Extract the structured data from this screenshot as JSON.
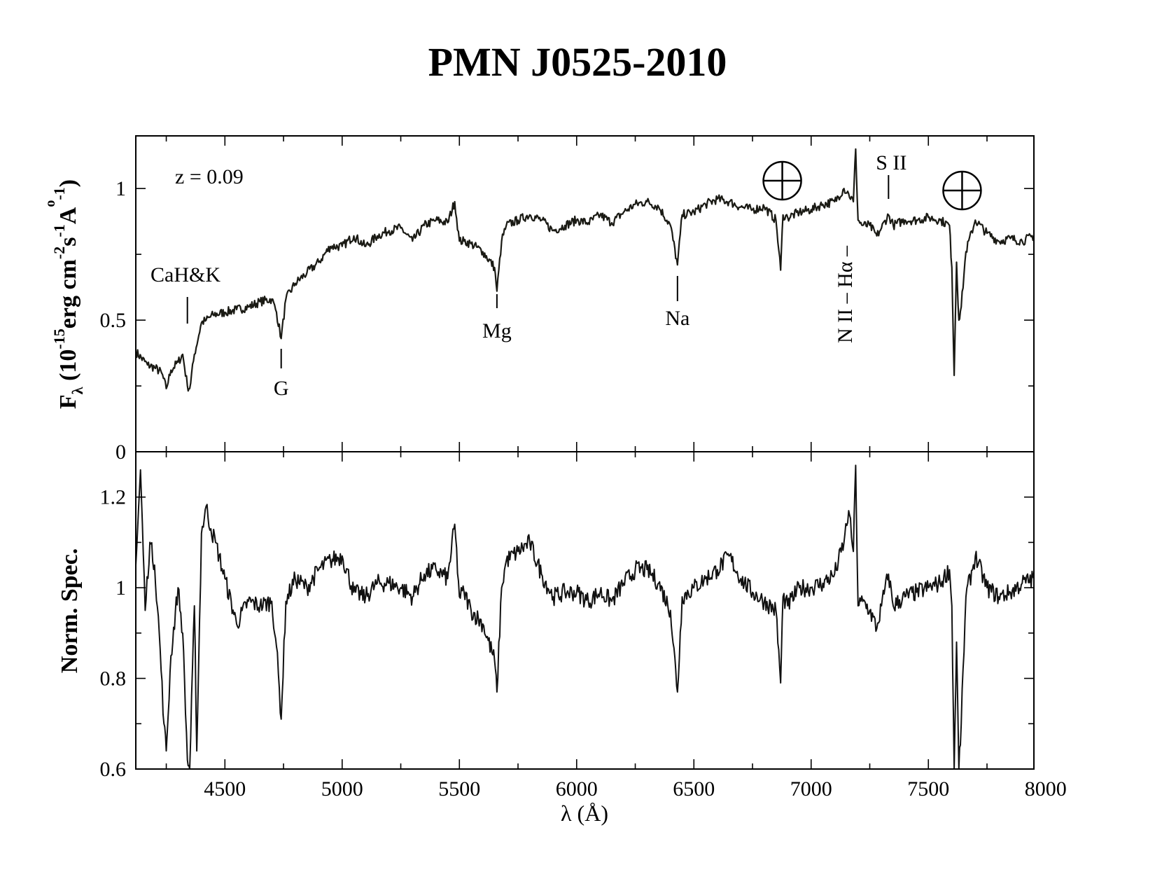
{
  "title": "PMN J0525-2010",
  "x_axis": {
    "label": "λ (Å)",
    "lambda": "λ",
    "unit": "Å",
    "range": [
      4120,
      7950
    ],
    "major_ticks": [
      4500,
      5000,
      5500,
      6000,
      6500,
      7000,
      7500,
      8000
    ],
    "minor_step": 250
  },
  "top_panel": {
    "ylabel": {
      "symbol": "F",
      "sub": "λ",
      "open": "(10",
      "exp": "-15",
      "erg": "erg cm",
      "exp_cm": "-2",
      "s": "s",
      "exp_s": "-1",
      "A": "A",
      "ring": "o",
      "exp_A": "-1",
      "close": ")"
    },
    "yrange": [
      0,
      1.2
    ],
    "major_ticks": [
      0,
      0.5,
      1
    ],
    "tick_labels": [
      "0",
      "0.5",
      "1"
    ],
    "minor_step": 0.25,
    "redshift_note": "z = 0.09",
    "line_labels": [
      {
        "text": "CaH&K",
        "lambda": 4340
      },
      {
        "text": "G",
        "lambda": 4740
      },
      {
        "text": "Mg",
        "lambda": 5660
      },
      {
        "text": "Na",
        "lambda": 6430
      },
      {
        "text": "N II",
        "lambda": 7150
      },
      {
        "text": "Hα",
        "lambda": 7160
      },
      {
        "text": "S II",
        "lambda": 7330
      }
    ],
    "telluric_markers": [
      {
        "name": "earth-symbol",
        "lambda": 6880
      },
      {
        "name": "earth-symbol",
        "lambda": 7620
      }
    ]
  },
  "bottom_panel": {
    "ylabel": "Norm. Spec.",
    "yrange": [
      0.6,
      1.3
    ],
    "major_ticks": [
      0.6,
      0.8,
      1,
      1.2
    ],
    "tick_labels": [
      "0.6",
      "0.8",
      "1",
      "1.2"
    ],
    "minor_step": 0.1
  },
  "chart_data": [
    {
      "type": "line",
      "panel": "top",
      "ylabel": "F_λ (10^-15 erg cm^-2 s^-1 Å^-1)",
      "xlim": [
        4120,
        7950
      ],
      "ylim": [
        0,
        1.2
      ],
      "series": [
        {
          "x": [
            4120,
            4170,
            4200,
            4230,
            4250,
            4270,
            4300,
            4320,
            4340,
            4350,
            4370,
            4400,
            4420,
            4450,
            4500,
            4550,
            4600,
            4650,
            4700,
            4720,
            4740,
            4760,
            4800,
            4850,
            4900,
            4950,
            5000,
            5050,
            5100,
            5150,
            5200,
            5250,
            5300,
            5350,
            5400,
            5450,
            5480,
            5500,
            5520,
            5550,
            5600,
            5650,
            5660,
            5680,
            5700,
            5750,
            5800,
            5850,
            5900,
            5950,
            6000,
            6050,
            6100,
            6150,
            6200,
            6250,
            6300,
            6350,
            6400,
            6430,
            6450,
            6500,
            6550,
            6600,
            6650,
            6700,
            6750,
            6800,
            6850,
            6870,
            6880,
            6900,
            6950,
            7000,
            7050,
            7100,
            7140,
            7160,
            7180,
            7190,
            7200,
            7220,
            7250,
            7280,
            7300,
            7330,
            7350,
            7400,
            7450,
            7500,
            7550,
            7590,
            7600,
            7610,
            7620,
            7630,
            7640,
            7660,
            7700,
            7750,
            7800,
            7850,
            7900,
            7950
          ],
          "y": [
            0.38,
            0.33,
            0.32,
            0.3,
            0.24,
            0.31,
            0.34,
            0.37,
            0.25,
            0.24,
            0.37,
            0.49,
            0.5,
            0.52,
            0.53,
            0.54,
            0.55,
            0.57,
            0.58,
            0.53,
            0.43,
            0.58,
            0.64,
            0.68,
            0.72,
            0.78,
            0.78,
            0.82,
            0.78,
            0.82,
            0.84,
            0.85,
            0.8,
            0.86,
            0.88,
            0.87,
            0.95,
            0.8,
            0.8,
            0.79,
            0.76,
            0.7,
            0.61,
            0.8,
            0.86,
            0.88,
            0.9,
            0.88,
            0.84,
            0.86,
            0.88,
            0.87,
            0.9,
            0.87,
            0.91,
            0.94,
            0.95,
            0.93,
            0.86,
            0.71,
            0.9,
            0.91,
            0.94,
            0.96,
            0.95,
            0.93,
            0.92,
            0.93,
            0.88,
            0.69,
            0.9,
            0.89,
            0.91,
            0.92,
            0.94,
            0.95,
            1.0,
            0.98,
            0.95,
            1.15,
            0.88,
            0.86,
            0.86,
            0.82,
            0.85,
            0.9,
            0.86,
            0.88,
            0.88,
            0.89,
            0.88,
            0.86,
            0.7,
            0.29,
            0.72,
            0.5,
            0.55,
            0.76,
            0.88,
            0.83,
            0.8,
            0.81,
            0.8,
            0.82
          ]
        }
      ]
    },
    {
      "type": "line",
      "panel": "bottom",
      "ylabel": "Norm. Spec.",
      "xlim": [
        4120,
        7950
      ],
      "ylim": [
        0.6,
        1.3
      ],
      "series": [
        {
          "x": [
            4120,
            4140,
            4160,
            4180,
            4200,
            4220,
            4240,
            4250,
            4270,
            4300,
            4320,
            4340,
            4350,
            4370,
            4380,
            4400,
            4420,
            4440,
            4460,
            4500,
            4550,
            4600,
            4650,
            4700,
            4720,
            4740,
            4760,
            4800,
            4850,
            4900,
            4950,
            5000,
            5050,
            5100,
            5150,
            5200,
            5250,
            5300,
            5350,
            5400,
            5450,
            5480,
            5500,
            5520,
            5550,
            5600,
            5650,
            5660,
            5680,
            5700,
            5750,
            5800,
            5850,
            5900,
            5950,
            6000,
            6050,
            6100,
            6150,
            6200,
            6250,
            6300,
            6350,
            6400,
            6430,
            6450,
            6500,
            6550,
            6600,
            6650,
            6700,
            6750,
            6800,
            6850,
            6870,
            6880,
            6900,
            6950,
            7000,
            7050,
            7100,
            7140,
            7160,
            7180,
            7190,
            7200,
            7220,
            7250,
            7280,
            7300,
            7330,
            7350,
            7400,
            7450,
            7500,
            7550,
            7590,
            7600,
            7610,
            7620,
            7630,
            7640,
            7660,
            7700,
            7750,
            7800,
            7850,
            7900,
            7950
          ],
          "y": [
            1.05,
            1.26,
            0.95,
            1.1,
            1.05,
            0.9,
            0.7,
            0.64,
            0.85,
            1.0,
            0.9,
            0.62,
            0.6,
            0.96,
            0.64,
            1.12,
            1.18,
            1.13,
            1.1,
            1.02,
            0.92,
            0.97,
            0.96,
            0.97,
            0.87,
            0.71,
            0.97,
            1.02,
            1.0,
            1.04,
            1.06,
            1.07,
            0.99,
            0.98,
            1.01,
            1.01,
            1.0,
            0.98,
            1.03,
            1.04,
            1.02,
            1.14,
            0.98,
            0.99,
            0.95,
            0.92,
            0.84,
            0.77,
            1.0,
            1.06,
            1.08,
            1.1,
            1.03,
            0.98,
            0.99,
            0.99,
            0.97,
            0.99,
            0.97,
            1.01,
            1.04,
            1.04,
            1.01,
            0.95,
            0.77,
            0.98,
            1.0,
            1.02,
            1.04,
            1.07,
            1.02,
            0.99,
            0.97,
            0.95,
            0.79,
            0.98,
            0.96,
            1.0,
            1.0,
            1.01,
            1.03,
            1.1,
            1.17,
            1.08,
            1.27,
            0.96,
            0.97,
            0.95,
            0.91,
            0.96,
            1.03,
            0.96,
            0.98,
            0.99,
            1.0,
            1.01,
            1.04,
            0.96,
            0.6,
            0.88,
            0.6,
            0.7,
            0.98,
            1.07,
            1.0,
            0.98,
            0.99,
            1.01,
            1.02
          ]
        }
      ]
    }
  ]
}
